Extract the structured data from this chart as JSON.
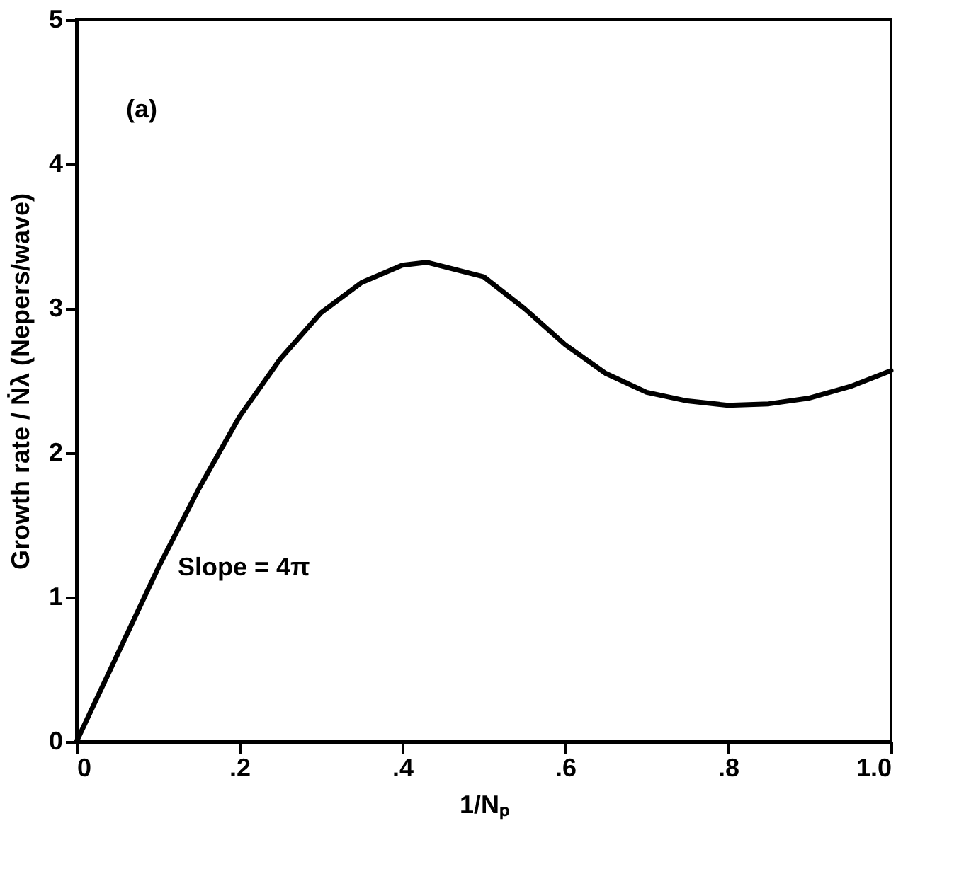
{
  "chart_data": {
    "type": "line",
    "xlabel": "1/Nₚ",
    "ylabel": "Growth rate / Ṅλ  (Nepers/wave)",
    "annotations": [
      "(a)",
      {
        "text": "Slope = 4π",
        "x": 0.1,
        "y": 1.2
      }
    ],
    "x": [
      0,
      0.05,
      0.1,
      0.15,
      0.2,
      0.25,
      0.3,
      0.35,
      0.4,
      0.43,
      0.5,
      0.55,
      0.6,
      0.65,
      0.7,
      0.75,
      0.8,
      0.85,
      0.9,
      0.95,
      1.0
    ],
    "series": [
      {
        "color": "#000000",
        "values": [
          0,
          0.6,
          1.2,
          1.75,
          2.25,
          2.65,
          2.97,
          3.18,
          3.3,
          3.32,
          3.22,
          3.0,
          2.75,
          2.55,
          2.42,
          2.36,
          2.33,
          2.34,
          2.38,
          2.46,
          2.57
        ]
      }
    ],
    "xlim": [
      0,
      1.0
    ],
    "ylim": [
      0,
      5
    ],
    "xticks": [
      0,
      {
        "value": 0.2,
        "label": ".2"
      },
      {
        "value": 0.4,
        "label": ".4"
      },
      {
        "value": 0.6,
        "label": ".6"
      },
      {
        "value": 0.8,
        "label": ".8"
      },
      {
        "value": 1.0,
        "label": "1.0"
      }
    ],
    "yticks": [
      0,
      1,
      2,
      3,
      4,
      5
    ],
    "grid": false,
    "marker": "none",
    "line_style": "solid"
  }
}
